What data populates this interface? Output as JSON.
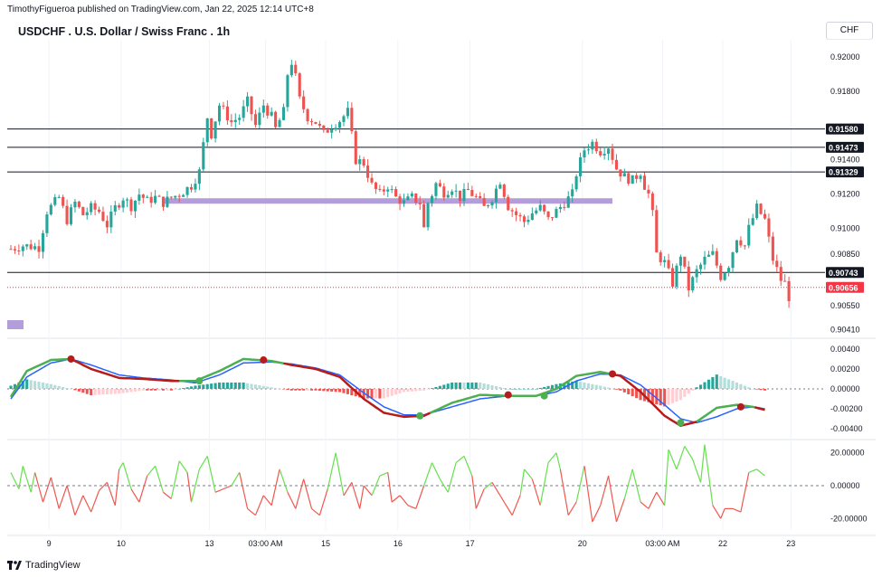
{
  "header": {
    "published": "TimothyFigueroa published on TradingView.com, Jan 22, 2025 12:14 UTC+8",
    "title": "USDCHF . U.S. Dollar / Swiss Franc . 1h",
    "currency": "CHF"
  },
  "footer": {
    "brand": "TradingView"
  },
  "colors": {
    "up": "#26a69a",
    "down": "#ef5350",
    "purple": "#b39ddb",
    "current": "#f23645",
    "fast": "#4caf50",
    "slow": "#2962ff",
    "wave_down": "#b71c1c"
  },
  "chart_data": [
    {
      "type": "candlestick",
      "title": "USDCHF . U.S. Dollar / Swiss Franc . 1h",
      "ylim": [
        0.9037,
        0.921
      ],
      "y_ticks": [
        "0.92000",
        "0.91800",
        "0.91400",
        "0.91200",
        "0.91000",
        "0.90850",
        "0.90550",
        "0.90410"
      ],
      "y_tick_values": [
        0.92,
        0.918,
        0.914,
        0.912,
        0.91,
        0.9085,
        0.9055,
        0.9041
      ],
      "x_ticks": [
        "9",
        "10",
        "13",
        "03:00 AM",
        "15",
        "16",
        "17",
        "20",
        "03:00 AM",
        "22",
        "23"
      ],
      "x_tick_positions": [
        9.5,
        27.5,
        49.5,
        63.5,
        78.5,
        96.5,
        114.5,
        142.5,
        162.5,
        177.5,
        194.5
      ],
      "n_bars": 195,
      "close_path": [
        [
          0,
          0.9088
        ],
        [
          3,
          0.909
        ],
        [
          7,
          0.9089
        ],
        [
          9,
          0.911
        ],
        [
          12,
          0.9118
        ],
        [
          14,
          0.9105
        ],
        [
          16,
          0.9115
        ],
        [
          18,
          0.9108
        ],
        [
          20,
          0.9112
        ],
        [
          22,
          0.911
        ],
        [
          24,
          0.9102
        ],
        [
          26,
          0.9112
        ],
        [
          28,
          0.9118
        ],
        [
          30,
          0.9113
        ],
        [
          32,
          0.912
        ],
        [
          34,
          0.9116
        ],
        [
          36,
          0.9118
        ],
        [
          38,
          0.9115
        ],
        [
          40,
          0.9118
        ],
        [
          42,
          0.912
        ],
        [
          45,
          0.9125
        ],
        [
          47,
          0.9133
        ],
        [
          49,
          0.9165
        ],
        [
          50,
          0.9155
        ],
        [
          52,
          0.9172
        ],
        [
          55,
          0.9162
        ],
        [
          57,
          0.9165
        ],
        [
          59,
          0.9174
        ],
        [
          61,
          0.916
        ],
        [
          63,
          0.9172
        ],
        [
          65,
          0.9165
        ],
        [
          66,
          0.9158
        ],
        [
          68,
          0.9168
        ],
        [
          69,
          0.919
        ],
        [
          70,
          0.9197
        ],
        [
          71,
          0.9188
        ],
        [
          72,
          0.9175
        ],
        [
          74,
          0.9165
        ],
        [
          76,
          0.9162
        ],
        [
          78,
          0.9155
        ],
        [
          80,
          0.916
        ],
        [
          82,
          0.9163
        ],
        [
          84,
          0.9168
        ],
        [
          86,
          0.914
        ],
        [
          88,
          0.9138
        ],
        [
          90,
          0.9125
        ],
        [
          92,
          0.912
        ],
        [
          94,
          0.9125
        ],
        [
          96,
          0.9118
        ],
        [
          98,
          0.9115
        ],
        [
          100,
          0.9118
        ],
        [
          102,
          0.9115
        ],
        [
          103,
          0.91
        ],
        [
          104,
          0.9115
        ],
        [
          105,
          0.912
        ],
        [
          106,
          0.9126
        ],
        [
          108,
          0.9121
        ],
        [
          110,
          0.9124
        ],
        [
          112,
          0.9118
        ],
        [
          114,
          0.9122
        ],
        [
          116,
          0.9118
        ],
        [
          118,
          0.9112
        ],
        [
          120,
          0.9118
        ],
        [
          122,
          0.9128
        ],
        [
          124,
          0.9113
        ],
        [
          126,
          0.9108
        ],
        [
          128,
          0.9104
        ],
        [
          130,
          0.9109
        ],
        [
          132,
          0.9112
        ],
        [
          134,
          0.9105
        ],
        [
          136,
          0.911
        ],
        [
          138,
          0.9115
        ],
        [
          140,
          0.912
        ],
        [
          141,
          0.9132
        ],
        [
          143,
          0.9146
        ],
        [
          145,
          0.915
        ],
        [
          147,
          0.9145
        ],
        [
          149,
          0.9148
        ],
        [
          151,
          0.9135
        ],
        [
          153,
          0.913
        ],
        [
          155,
          0.9128
        ],
        [
          157,
          0.9133
        ],
        [
          158,
          0.9125
        ],
        [
          159,
          0.912
        ],
        [
          160,
          0.9108
        ],
        [
          161,
          0.9085
        ],
        [
          163,
          0.908
        ],
        [
          165,
          0.9068
        ],
        [
          167,
          0.9085
        ],
        [
          169,
          0.9065
        ],
        [
          171,
          0.9075
        ],
        [
          173,
          0.9082
        ],
        [
          175,
          0.9085
        ],
        [
          177,
          0.9072
        ],
        [
          179,
          0.9079
        ],
        [
          181,
          0.9095
        ],
        [
          183,
          0.909
        ],
        [
          184,
          0.91
        ],
        [
          186,
          0.9112
        ],
        [
          188,
          0.9105
        ],
        [
          190,
          0.9082
        ],
        [
          192,
          0.907
        ],
        [
          193,
          0.9068
        ],
        [
          194,
          0.906
        ],
        [
          196,
          0.9052
        ],
        [
          198,
          0.9062
        ],
        [
          200,
          0.9068
        ],
        [
          202,
          0.9066
        ]
      ],
      "horizontal_levels": [
        {
          "label": "0.91580",
          "value": 0.9158
        },
        {
          "label": "0.91473",
          "value": 0.91473
        },
        {
          "label": "0.91329",
          "value": 0.91329
        },
        {
          "label": "0.90743",
          "value": 0.90743
        }
      ],
      "current_price": {
        "label": "0.90656",
        "value": 0.90656
      },
      "zone": {
        "from_bar": 38,
        "to_bar": 150,
        "value": 0.9116
      }
    },
    {
      "type": "line+histogram",
      "ylim": [
        -0.0049,
        0.0049
      ],
      "y_ticks": [
        "0.00400",
        "0.00200",
        "0.00000",
        "-0.00200",
        "-0.00400"
      ],
      "y_tick_values": [
        0.004,
        0.002,
        0.0,
        -0.002,
        -0.004
      ],
      "series": [
        {
          "values_path": [
            [
              0,
              -0.0008
            ],
            [
              4,
              0.0018
            ],
            [
              10,
              0.0029
            ],
            [
              15,
              0.003
            ],
            [
              20,
              0.002
            ],
            [
              27,
              0.0011
            ],
            [
              33,
              0.001
            ],
            [
              40,
              0.0008
            ],
            [
              46,
              0.0008
            ],
            [
              52,
              0.0018
            ],
            [
              58,
              0.003
            ],
            [
              65,
              0.0028
            ],
            [
              70,
              0.0024
            ],
            [
              76,
              0.002
            ],
            [
              82,
              0.0012
            ],
            [
              88,
              -0.001
            ],
            [
              93,
              -0.0024
            ],
            [
              98,
              -0.0028
            ],
            [
              103,
              -0.0027
            ],
            [
              110,
              -0.0014
            ],
            [
              117,
              -0.0006
            ],
            [
              124,
              -0.0007
            ],
            [
              131,
              -0.0007
            ],
            [
              136,
              0.0
            ],
            [
              141,
              0.0013
            ],
            [
              147,
              0.0017
            ],
            [
              152,
              0.0013
            ],
            [
              157,
              -0.0003
            ],
            [
              163,
              -0.0027
            ],
            [
              167,
              -0.0037
            ],
            [
              171,
              -0.0033
            ],
            [
              176,
              -0.0019
            ],
            [
              181,
              -0.0016
            ],
            [
              185,
              -0.0018
            ],
            [
              188,
              -0.0021
            ]
          ]
        },
        {
          "values_path": [
            [
              0,
              -0.001
            ],
            [
              4,
              0.0012
            ],
            [
              10,
              0.0026
            ],
            [
              15,
              0.003
            ],
            [
              20,
              0.0024
            ],
            [
              27,
              0.0014
            ],
            [
              33,
              0.0011
            ],
            [
              40,
              0.0009
            ],
            [
              46,
              0.0006
            ],
            [
              52,
              0.0014
            ],
            [
              58,
              0.0026
            ],
            [
              65,
              0.0027
            ],
            [
              70,
              0.0025
            ],
            [
              76,
              0.0021
            ],
            [
              82,
              0.0014
            ],
            [
              88,
              -0.0004
            ],
            [
              93,
              -0.0018
            ],
            [
              98,
              -0.0026
            ],
            [
              103,
              -0.0026
            ],
            [
              110,
              -0.0018
            ],
            [
              117,
              -0.001
            ],
            [
              124,
              -0.0007
            ],
            [
              131,
              -0.0007
            ],
            [
              136,
              -0.0003
            ],
            [
              141,
              0.0008
            ],
            [
              147,
              0.0015
            ],
            [
              152,
              0.0014
            ],
            [
              157,
              0.0004
            ],
            [
              163,
              -0.0016
            ],
            [
              167,
              -0.003
            ],
            [
              171,
              -0.0034
            ],
            [
              176,
              -0.0028
            ],
            [
              181,
              -0.002
            ],
            [
              185,
              -0.0018
            ],
            [
              188,
              -0.002
            ]
          ]
        }
      ],
      "markers": [
        {
          "bar": 15,
          "value": 0.003,
          "kind": "down"
        },
        {
          "bar": 47,
          "value": 0.0008,
          "kind": "up"
        },
        {
          "bar": 63,
          "value": 0.0029,
          "kind": "down"
        },
        {
          "bar": 102,
          "value": -0.0027,
          "kind": "up"
        },
        {
          "bar": 124,
          "value": -0.0006,
          "kind": "down"
        },
        {
          "bar": 133,
          "value": -0.0007,
          "kind": "up"
        },
        {
          "bar": 150,
          "value": 0.0015,
          "kind": "down"
        },
        {
          "bar": 167,
          "value": -0.0034,
          "kind": "up"
        },
        {
          "bar": 182,
          "value": -0.0018,
          "kind": "down"
        }
      ]
    },
    {
      "type": "line",
      "ylim": [
        -27,
        27
      ],
      "y_ticks": [
        "20.00000",
        "0.00000",
        "-20.00000"
      ],
      "y_tick_values": [
        20,
        0,
        -20
      ],
      "values_path": [
        [
          0,
          8
        ],
        [
          2,
          -2
        ],
        [
          3,
          12
        ],
        [
          5,
          -4
        ],
        [
          6,
          8
        ],
        [
          8,
          -10
        ],
        [
          10,
          5
        ],
        [
          12,
          -14
        ],
        [
          14,
          0
        ],
        [
          16,
          -18
        ],
        [
          18,
          -6
        ],
        [
          20,
          -16
        ],
        [
          22,
          -3
        ],
        [
          24,
          2
        ],
        [
          26,
          -12
        ],
        [
          27,
          10
        ],
        [
          28,
          14
        ],
        [
          30,
          -2
        ],
        [
          32,
          -10
        ],
        [
          34,
          6
        ],
        [
          36,
          12
        ],
        [
          38,
          -4
        ],
        [
          40,
          -8
        ],
        [
          42,
          15
        ],
        [
          44,
          8
        ],
        [
          45,
          -10
        ],
        [
          47,
          10
        ],
        [
          49,
          18
        ],
        [
          51,
          -4
        ],
        [
          53,
          -2
        ],
        [
          55,
          0
        ],
        [
          57,
          8
        ],
        [
          59,
          -14
        ],
        [
          61,
          -18
        ],
        [
          63,
          -6
        ],
        [
          65,
          -12
        ],
        [
          67,
          10
        ],
        [
          69,
          -4
        ],
        [
          71,
          -14
        ],
        [
          73,
          4
        ],
        [
          75,
          -14
        ],
        [
          77,
          -18
        ],
        [
          79,
          -2
        ],
        [
          81,
          20
        ],
        [
          83,
          -6
        ],
        [
          85,
          2
        ],
        [
          87,
          -14
        ],
        [
          88,
          0
        ],
        [
          90,
          -6
        ],
        [
          92,
          6
        ],
        [
          94,
          8
        ],
        [
          95,
          -10
        ],
        [
          97,
          -6
        ],
        [
          99,
          -12
        ],
        [
          101,
          -14
        ],
        [
          103,
          0
        ],
        [
          105,
          14
        ],
        [
          107,
          4
        ],
        [
          109,
          -4
        ],
        [
          111,
          14
        ],
        [
          113,
          18
        ],
        [
          115,
          6
        ],
        [
          116,
          -14
        ],
        [
          118,
          -2
        ],
        [
          120,
          2
        ],
        [
          122,
          -6
        ],
        [
          123,
          -10
        ],
        [
          125,
          -18
        ],
        [
          127,
          -6
        ],
        [
          128,
          10
        ],
        [
          130,
          4
        ],
        [
          132,
          -12
        ],
        [
          134,
          14
        ],
        [
          136,
          20
        ],
        [
          137,
          10
        ],
        [
          139,
          -18
        ],
        [
          141,
          -10
        ],
        [
          143,
          12
        ],
        [
          145,
          -22
        ],
        [
          147,
          -12
        ],
        [
          149,
          6
        ],
        [
          151,
          -22
        ],
        [
          153,
          -8
        ],
        [
          155,
          10
        ],
        [
          157,
          -10
        ],
        [
          159,
          -14
        ],
        [
          161,
          -4
        ],
        [
          163,
          -12
        ],
        [
          164,
          22
        ],
        [
          166,
          10
        ],
        [
          168,
          24
        ],
        [
          170,
          16
        ],
        [
          172,
          2
        ],
        [
          173,
          25
        ],
        [
          175,
          -12
        ],
        [
          177,
          -20
        ],
        [
          178,
          -14
        ],
        [
          180,
          -14
        ],
        [
          182,
          -16
        ],
        [
          184,
          8
        ],
        [
          186,
          10
        ],
        [
          188,
          6
        ]
      ],
      "dashed_zero": true
    }
  ]
}
